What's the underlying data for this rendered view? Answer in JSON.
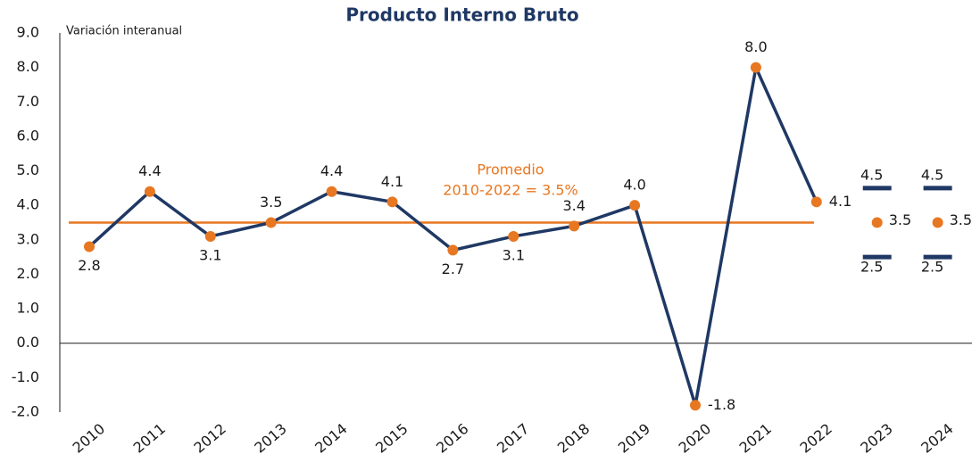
{
  "chart_data": {
    "type": "line",
    "title": "Producto Interno Bruto",
    "y_label": "Variación interanual",
    "categories": [
      "2010",
      "2011",
      "2012",
      "2013",
      "2014",
      "2015",
      "2016",
      "2017",
      "2018",
      "2019",
      "2020",
      "2021",
      "2022",
      "2023",
      "2024"
    ],
    "series": [
      {
        "color": "#1f3864",
        "marker_color": "#e87722",
        "values": [
          2.8,
          4.4,
          3.1,
          3.5,
          4.4,
          4.1,
          2.7,
          3.1,
          3.4,
          4.0,
          -1.8,
          8.0,
          4.1,
          null,
          null
        ],
        "value_labels": [
          "2.8",
          "4.4",
          "3.1",
          "3.5",
          "4.4",
          "4.1",
          "2.7",
          "3.1",
          "3.4",
          "4.0",
          "-1.8",
          "8.0",
          "4.1",
          null,
          null
        ]
      }
    ],
    "forecast": {
      "color": "#e87722",
      "range_color": "#1f3864",
      "values": [
        null,
        null,
        null,
        null,
        null,
        null,
        null,
        null,
        null,
        null,
        null,
        null,
        null,
        3.5,
        3.5
      ],
      "low": [
        null,
        null,
        null,
        null,
        null,
        null,
        null,
        null,
        null,
        null,
        null,
        null,
        null,
        2.5,
        2.5
      ],
      "high": [
        null,
        null,
        null,
        null,
        null,
        null,
        null,
        null,
        null,
        null,
        null,
        null,
        null,
        4.5,
        4.5
      ]
    },
    "average": {
      "value": 3.5,
      "color": "#e87722",
      "label": [
        "Promedio",
        "2010-2022 = 3.5%"
      ]
    },
    "ylim": [
      -2,
      9
    ],
    "yticks": [
      {
        "value": -2,
        "label": "-2.0"
      },
      {
        "value": -1,
        "label": "-1.0"
      },
      {
        "value": 0,
        "label": "0.0"
      },
      {
        "value": 1,
        "label": "1.0"
      },
      {
        "value": 2,
        "label": "2.0"
      },
      {
        "value": 3,
        "label": "3.0"
      },
      {
        "value": 4,
        "label": "4.0"
      },
      {
        "value": 5,
        "label": "5.0"
      },
      {
        "value": 6,
        "label": "6.0"
      },
      {
        "value": 7,
        "label": "7.0"
      },
      {
        "value": 8,
        "label": "8.0"
      },
      {
        "value": 9,
        "label": "9.0"
      }
    ]
  }
}
